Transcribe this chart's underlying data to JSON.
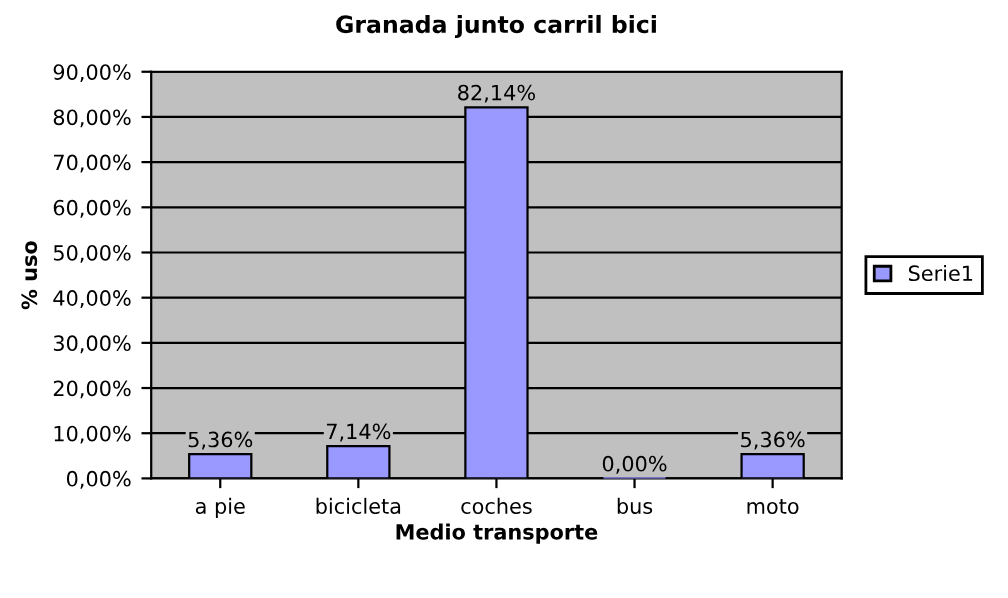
{
  "chart_data": {
    "type": "bar",
    "title": "Granada junto carril bici",
    "xlabel": "Medio transporte",
    "ylabel": "% uso",
    "categories": [
      "a pie",
      "bicicleta",
      "coches",
      "bus",
      "moto"
    ],
    "series": [
      {
        "name": "Serie1",
        "color": "#9999ff",
        "values": [
          5.36,
          7.14,
          82.14,
          0,
          5.36
        ],
        "value_labels": [
          "5,36%",
          "7,14%",
          "82,14%",
          "0,00%",
          "5,36%"
        ]
      }
    ],
    "ylim": [
      0,
      90
    ],
    "yticks": [
      {
        "value": 0,
        "label": "0,00%"
      },
      {
        "value": 10,
        "label": "10,00%"
      },
      {
        "value": 20,
        "label": "20,00%"
      },
      {
        "value": 30,
        "label": "30,00%"
      },
      {
        "value": 40,
        "label": "40,00%"
      },
      {
        "value": 50,
        "label": "50,00%"
      },
      {
        "value": 60,
        "label": "60,00%"
      },
      {
        "value": 70,
        "label": "70,00%"
      },
      {
        "value": 80,
        "label": "80,00%"
      },
      {
        "value": 90,
        "label": "90,00%"
      }
    ],
    "grid": "y",
    "legend": "right"
  }
}
